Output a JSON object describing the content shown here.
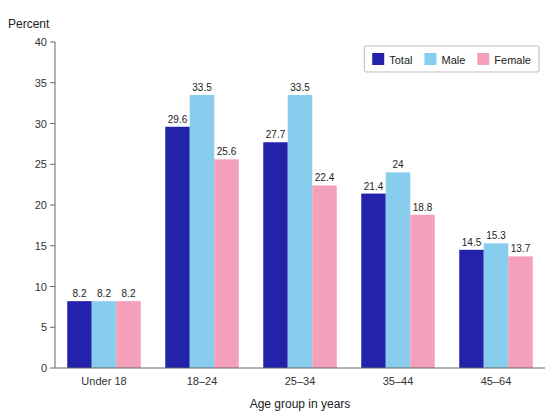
{
  "chart_data": {
    "type": "bar",
    "categories": [
      "Under 18",
      "18–24",
      "25–34",
      "35–44",
      "45–64"
    ],
    "series": [
      {
        "name": "Total",
        "color": "#2222aa",
        "values": [
          8.2,
          29.6,
          27.7,
          21.4,
          14.5
        ]
      },
      {
        "name": "Male",
        "color": "#88ccee",
        "values": [
          8.2,
          33.5,
          33.5,
          24.0,
          15.3
        ]
      },
      {
        "name": "Female",
        "color": "#f4a0bb",
        "values": [
          8.2,
          25.6,
          22.4,
          18.8,
          13.7
        ]
      }
    ],
    "xlabel": "Age group in years",
    "ylabel": "Percent",
    "ylim": [
      0,
      40
    ],
    "yticks": [
      0,
      5,
      10,
      15,
      20,
      25,
      30,
      35,
      40
    ],
    "grid": false,
    "legend": "upper right",
    "data_labels": true
  }
}
